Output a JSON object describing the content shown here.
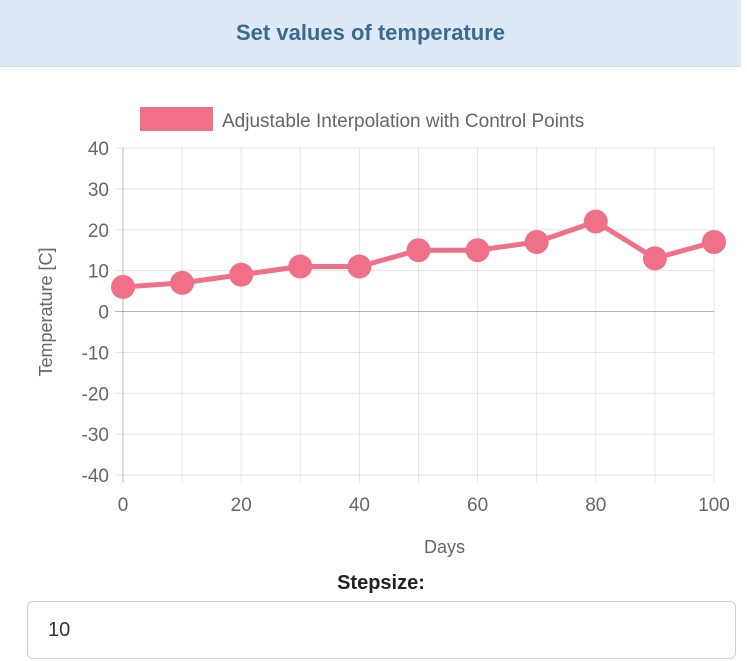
{
  "header": {
    "title": "Set values of temperature"
  },
  "chart_data": {
    "type": "line",
    "xlabel": "Days",
    "ylabel": "Temperature [C]",
    "x": [
      0,
      10,
      20,
      30,
      40,
      50,
      60,
      70,
      80,
      90,
      100
    ],
    "series": [
      {
        "name": "Adjustable Interpolation with Control Points",
        "values": [
          6,
          7,
          9,
          11,
          11,
          15,
          15,
          17,
          22,
          13,
          17
        ]
      }
    ],
    "xlim": [
      0,
      100
    ],
    "ylim": [
      -40,
      40
    ],
    "xticks": [
      0,
      20,
      40,
      60,
      80,
      100
    ],
    "yticks": [
      40,
      30,
      20,
      10,
      0,
      -10,
      -20,
      -30,
      -40
    ],
    "grid": true,
    "legend_position": "top",
    "color": "#f07088"
  },
  "stepsize": {
    "label": "Stepsize:",
    "value": "10"
  }
}
